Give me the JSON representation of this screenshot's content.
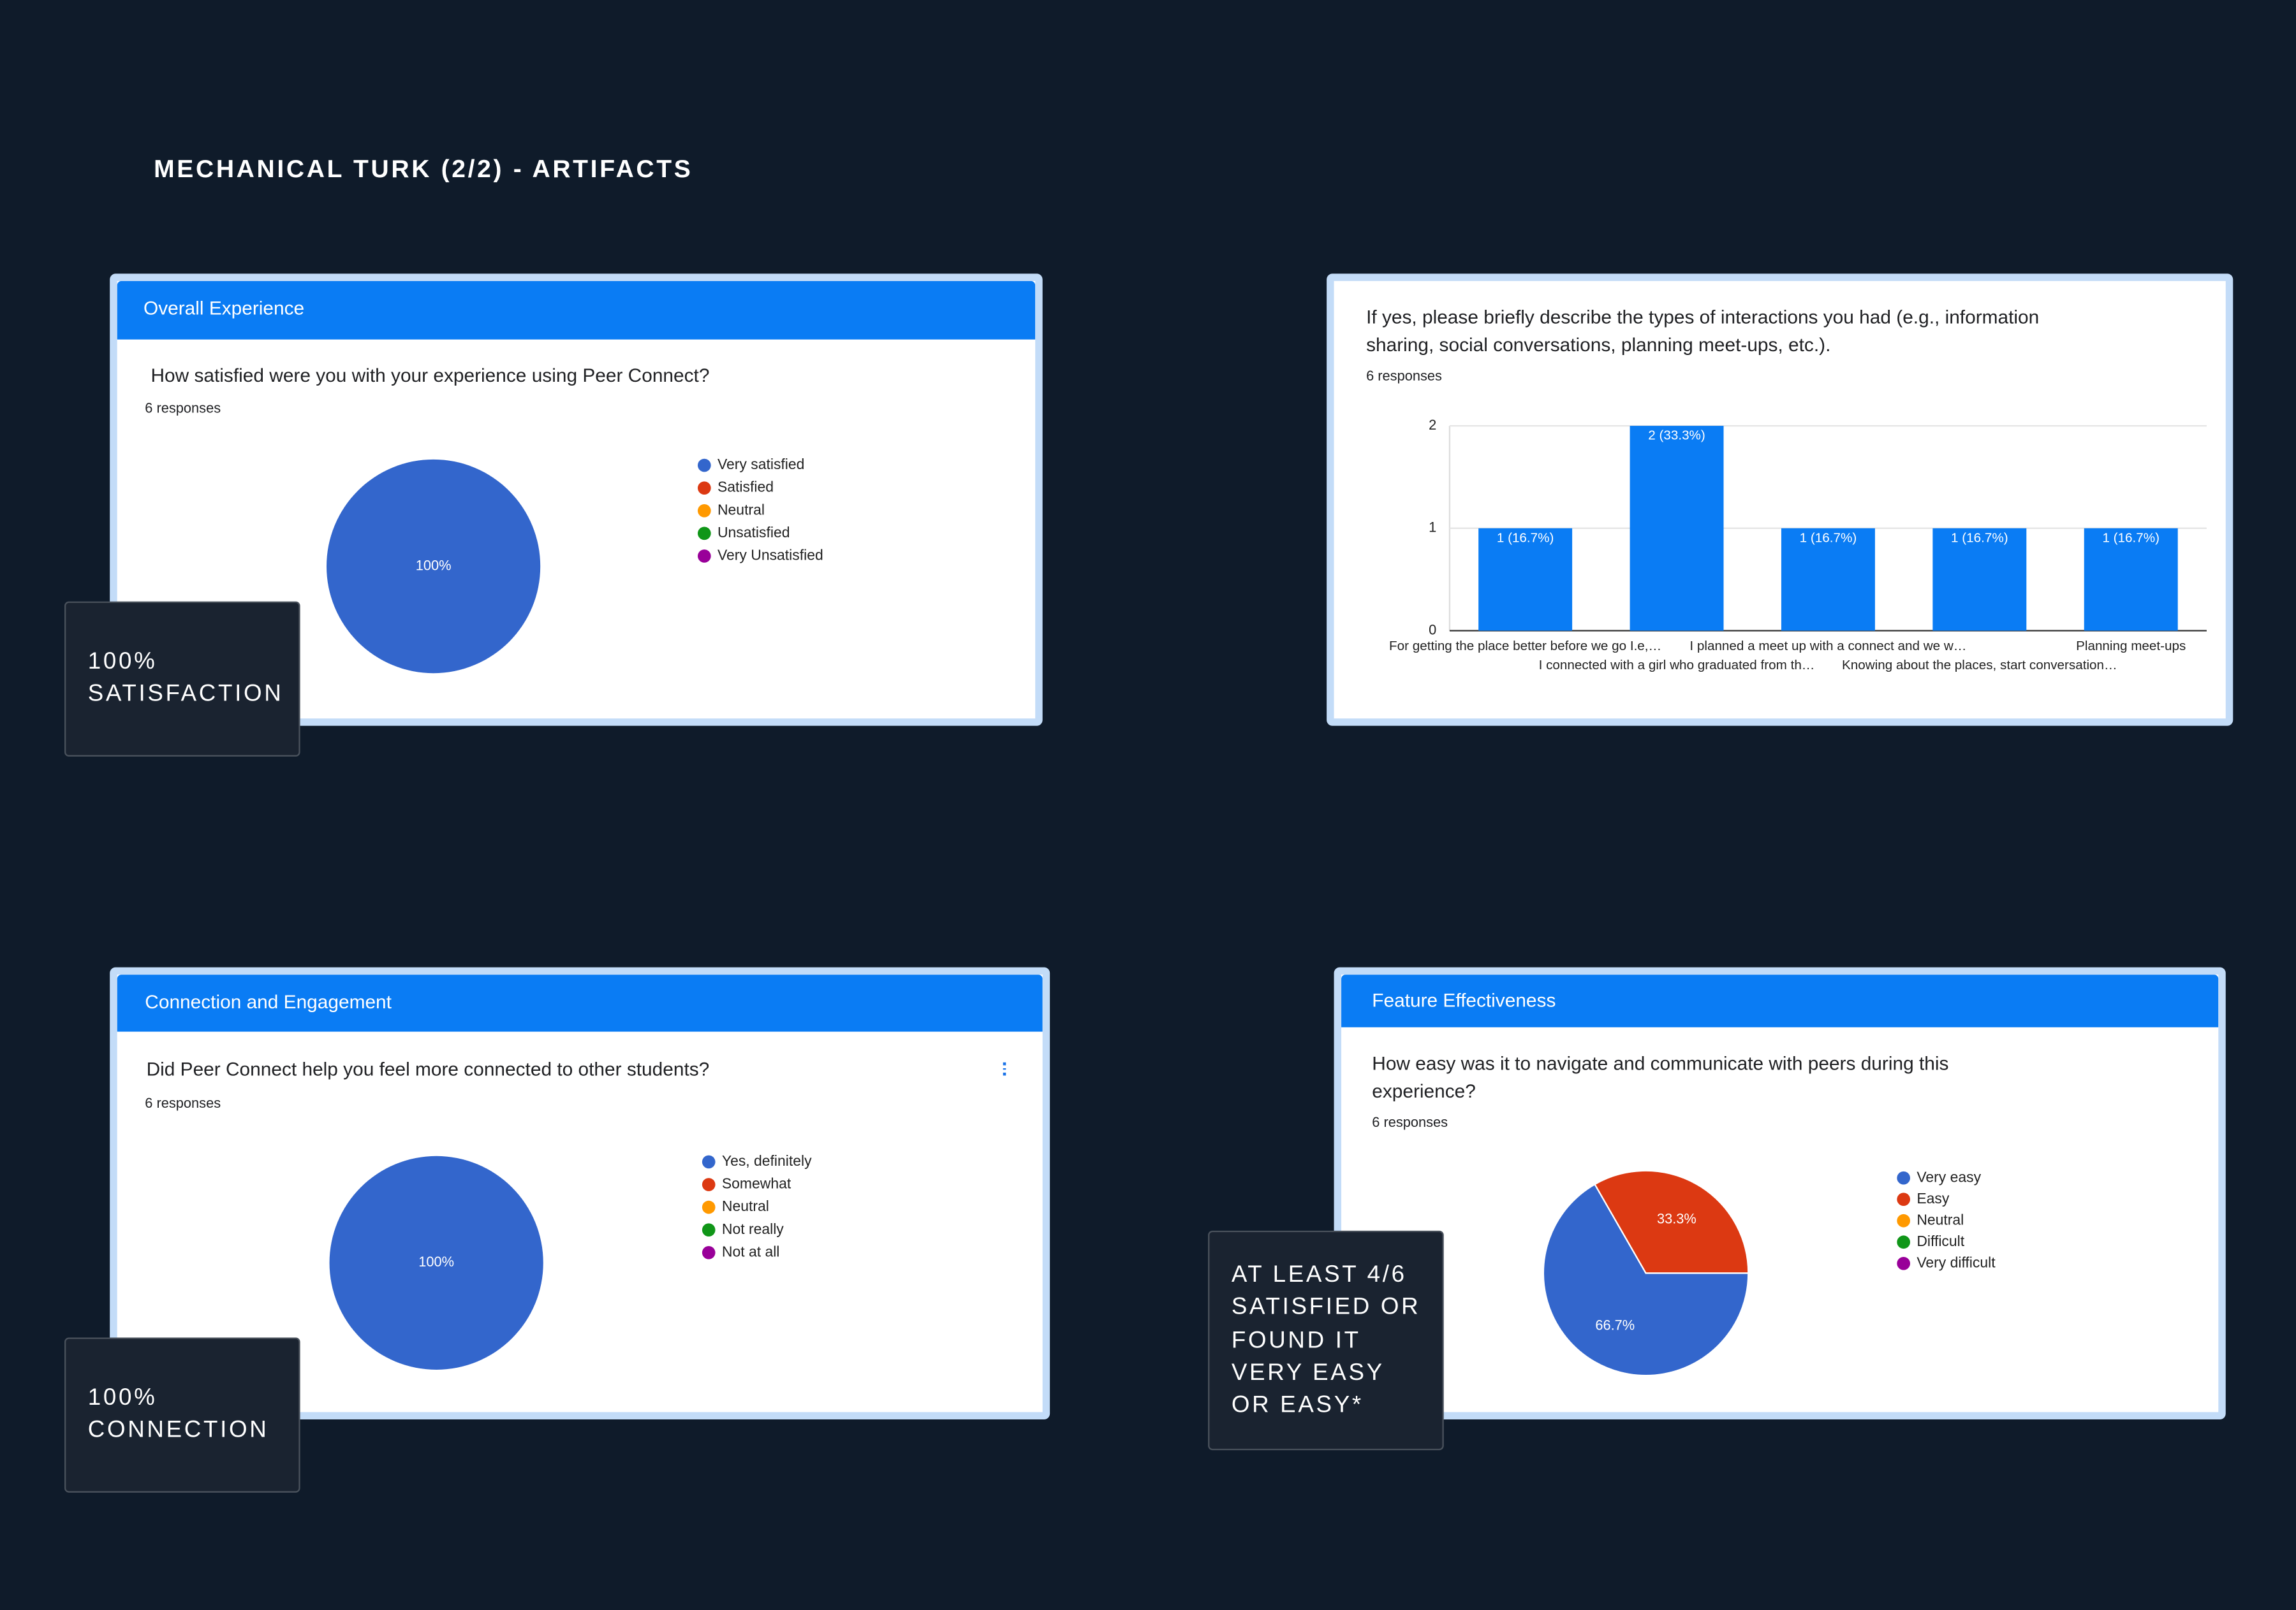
{
  "title": "MECHANICAL TURK (2/2) - ARTIFACTS",
  "callouts": [
    {
      "lines": [
        "100%",
        "SATISFACTION"
      ]
    },
    {
      "lines": [
        "100%",
        "CONNECTION"
      ]
    },
    {
      "lines": [
        "AT LEAST 4/6",
        "SATISFIED OR",
        "FOUND IT",
        "VERY EASY",
        "OR EASY*"
      ]
    }
  ],
  "chart_data": [
    {
      "type": "pie",
      "header": "Overall Experience",
      "title": "How satisfied were you with your experience using Peer Connect?",
      "subtitle": "6 responses",
      "categories": [
        "Very satisfied",
        "Satisfied",
        "Neutral",
        "Unsatisfied",
        "Very Unsatisfied"
      ],
      "values": [
        100,
        0,
        0,
        0,
        0
      ],
      "value_labels": [
        "100%",
        null,
        null,
        null,
        null
      ],
      "colors": [
        "#3366cc",
        "#dc3912",
        "#ff9900",
        "#109618",
        "#990099"
      ]
    },
    {
      "type": "bar",
      "title": "If yes, please briefly describe the types of interactions you had (e.g., information sharing, social conversations, planning meet-ups, etc.).",
      "subtitle": "6 responses",
      "categories": [
        "For getting the place better before we go I.e,…",
        "I connected with a girl who graduated from th…",
        "I planned a meet up with a connect and we w…",
        "Knowing about the places, start conversation…",
        "Planning meet-ups"
      ],
      "values": [
        1,
        2,
        1,
        1,
        1
      ],
      "value_labels": [
        "1 (16.7%)",
        "2 (33.3%)",
        "1 (16.7%)",
        "1 (16.7%)",
        "1 (16.7%)"
      ],
      "color": "#0a7cf4",
      "ylim": [
        0,
        2
      ],
      "yticks": [
        0,
        1,
        2
      ],
      "grid": true
    },
    {
      "type": "pie",
      "header": "Connection and Engagement",
      "title": "Did Peer Connect help you feel more connected to other students?",
      "subtitle": "6 responses",
      "categories": [
        "Yes, definitely",
        "Somewhat",
        "Neutral",
        "Not really",
        "Not at all"
      ],
      "values": [
        100,
        0,
        0,
        0,
        0
      ],
      "value_labels": [
        "100%",
        null,
        null,
        null,
        null
      ],
      "colors": [
        "#3366cc",
        "#dc3912",
        "#ff9900",
        "#109618",
        "#990099"
      ]
    },
    {
      "type": "pie",
      "header": "Feature Effectiveness",
      "title": "How easy was it to navigate and communicate with peers during this experience?",
      "subtitle": "6 responses",
      "categories": [
        "Very easy",
        "Easy",
        "Neutral",
        "Difficult",
        "Very difficult"
      ],
      "values": [
        66.7,
        33.3,
        0,
        0,
        0
      ],
      "value_labels": [
        "66.7%",
        "33.3%",
        null,
        null,
        null
      ],
      "colors": [
        "#3366cc",
        "#dc3912",
        "#ff9900",
        "#109618",
        "#990099"
      ],
      "start_angle": 90
    }
  ]
}
